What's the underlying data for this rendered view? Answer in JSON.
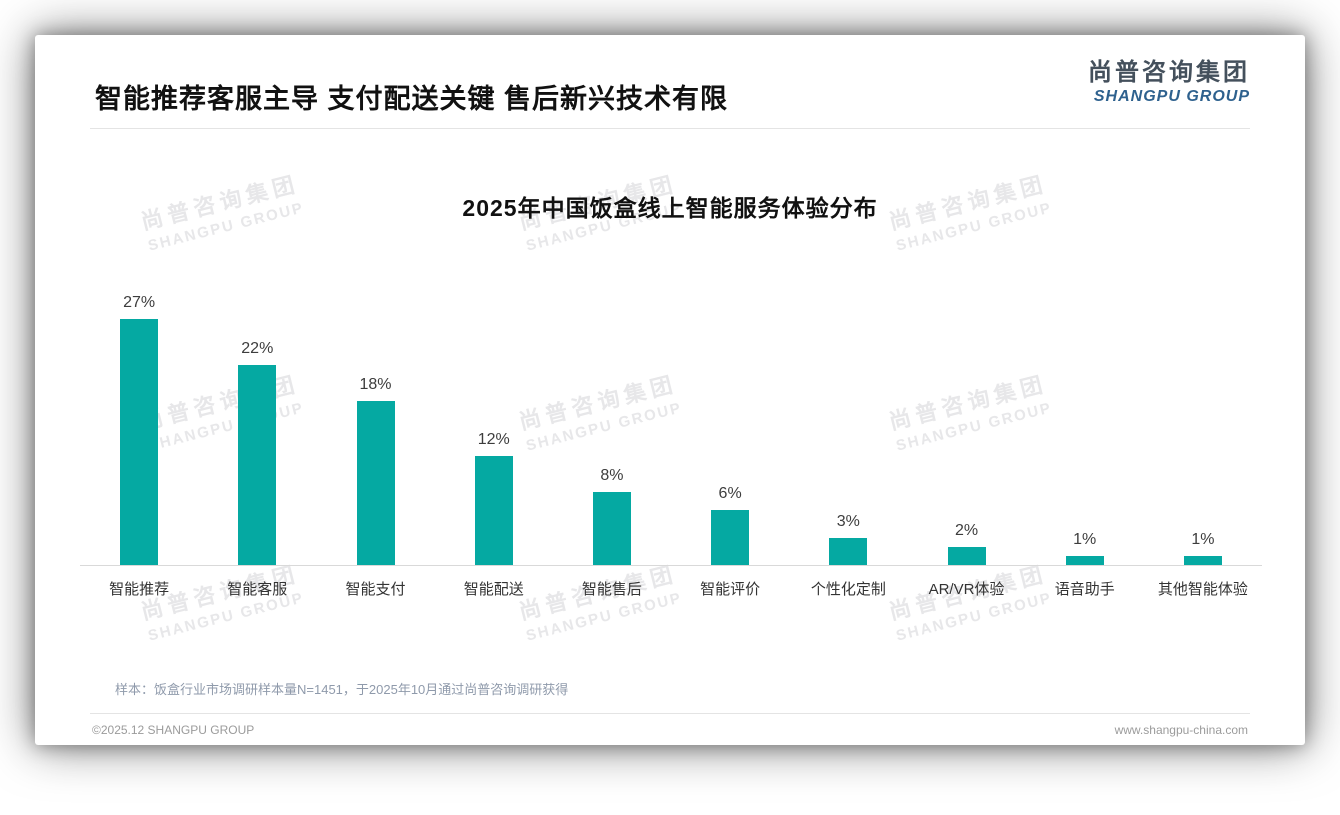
{
  "page": {
    "title": "智能推荐客服主导 支付配送关键 售后新兴技术有限",
    "logo": {
      "cn": "尚普咨询集团",
      "en": "SHANGPU GROUP"
    },
    "watermark": {
      "line1": "尚普咨询集团",
      "line2": "SHANGPU GROUP"
    },
    "note": "样本：饭盒行业市场调研样本量N=1451，于2025年10月通过尚普咨询调研获得",
    "footer": {
      "copyright": "©2025.12 SHANGPU GROUP",
      "website": "www.shangpu-china.com"
    }
  },
  "chart_data": {
    "type": "bar",
    "title": "2025年中国饭盒线上智能服务体验分布",
    "categories": [
      "智能推荐",
      "智能客服",
      "智能支付",
      "智能配送",
      "智能售后",
      "智能评价",
      "个性化定制",
      "AR/VR体验",
      "语音助手",
      "其他智能体验"
    ],
    "values": [
      27,
      22,
      18,
      12,
      8,
      6,
      3,
      2,
      1,
      1
    ],
    "value_suffix": "%",
    "bar_color": "#05a9a2",
    "value_label_color": "#3d3d3d",
    "axis_line_color": "#d9d9d9",
    "ylim": [
      0,
      30
    ],
    "grid": false,
    "legend": false,
    "value_labels": true,
    "xlabel": "",
    "ylabel": ""
  }
}
